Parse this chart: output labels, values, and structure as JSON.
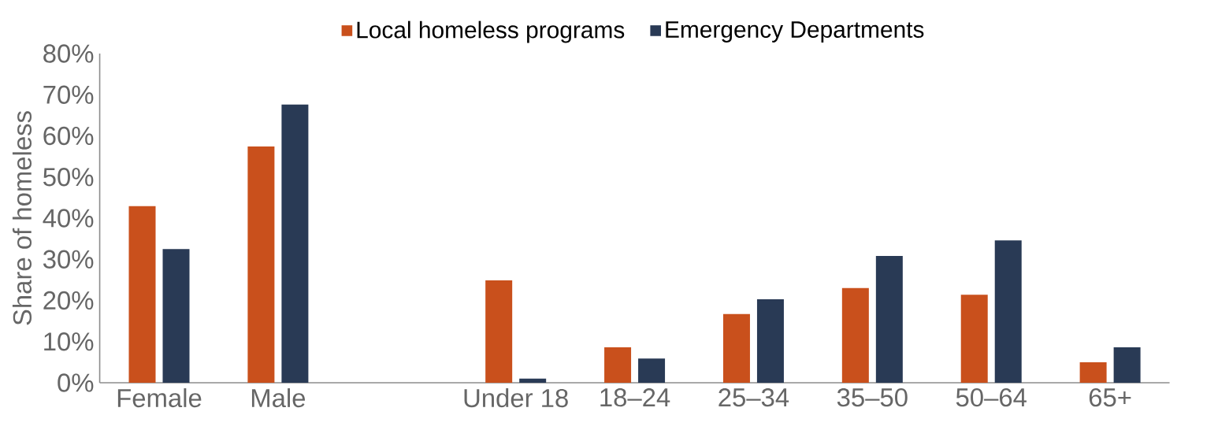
{
  "chart_data": {
    "type": "bar",
    "ylabel": "Share of homeless",
    "categories": [
      "Female",
      "Male",
      null,
      "Under 18",
      "18–24",
      "25–34",
      "35–50",
      "50–64",
      "65+"
    ],
    "series": [
      {
        "name": "Local homeless programs",
        "color": "#c9501c",
        "values": [
          42.9,
          57.4,
          null,
          24.9,
          8.6,
          16.7,
          23.0,
          21.4,
          5.0
        ]
      },
      {
        "name": "Emergency Departments",
        "color": "#293a55",
        "values": [
          32.5,
          67.6,
          null,
          1.0,
          5.9,
          20.3,
          30.8,
          34.6,
          8.6
        ]
      }
    ],
    "ylim": [
      0,
      80
    ],
    "yticks": [
      {
        "value": 0,
        "label": "0%"
      },
      {
        "value": 10,
        "label": "10%"
      },
      {
        "value": 20,
        "label": "20%"
      },
      {
        "value": 30,
        "label": "30%"
      },
      {
        "value": 40,
        "label": "40%"
      },
      {
        "value": 50,
        "label": "50%"
      },
      {
        "value": 60,
        "label": "60%"
      },
      {
        "value": 70,
        "label": "70%"
      },
      {
        "value": 80,
        "label": "80%"
      }
    ],
    "legend": "top",
    "grid": false
  }
}
